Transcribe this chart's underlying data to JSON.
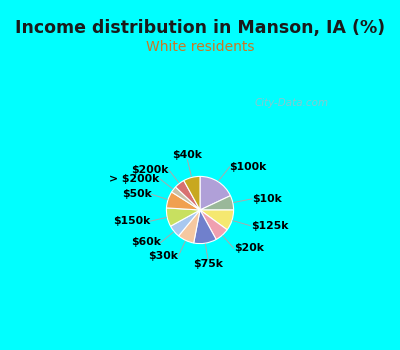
{
  "title": "Income distribution in Manson, IA (%)",
  "subtitle": "White residents",
  "title_color": "#1a1a1a",
  "subtitle_color": "#cc7722",
  "bg_top": "#00ffff",
  "bg_chart": "#e8f0e8",
  "watermark": "City-Data.com",
  "labels": [
    "$100k",
    "$10k",
    "$125k",
    "$20k",
    "$75k",
    "$30k",
    "$60k",
    "$150k",
    "$50k",
    "> $200k",
    "$200k",
    "$40k"
  ],
  "values": [
    18,
    7,
    10,
    7,
    11,
    8,
    6,
    9,
    8,
    3,
    5,
    8
  ],
  "colors": [
    "#b0a0d8",
    "#9ab89a",
    "#f5e870",
    "#f0a0b0",
    "#7080cc",
    "#f5c8a0",
    "#a8c8f0",
    "#c8e060",
    "#f0a050",
    "#c8c0a8",
    "#d87070",
    "#c8a820"
  ],
  "startangle": 90
}
